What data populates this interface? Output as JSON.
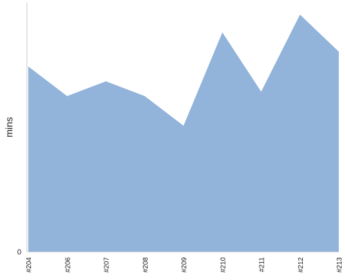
{
  "chart_data": {
    "type": "area",
    "title": "",
    "xlabel": "",
    "ylabel": "mins",
    "x": [
      "#204",
      "#206",
      "#207",
      "#208",
      "#209",
      "#210",
      "#211",
      "#212",
      "#213"
    ],
    "series": [
      {
        "values": [
          62.5,
          52.5,
          57.5,
          52.5,
          42.5,
          74,
          54,
          80,
          67.5
        ],
        "color": "#92b3da"
      }
    ],
    "ylim": [
      0,
      84
    ],
    "yticks": [
      {
        "value": 0,
        "label": "0"
      }
    ],
    "grid": false,
    "legend": "none"
  }
}
